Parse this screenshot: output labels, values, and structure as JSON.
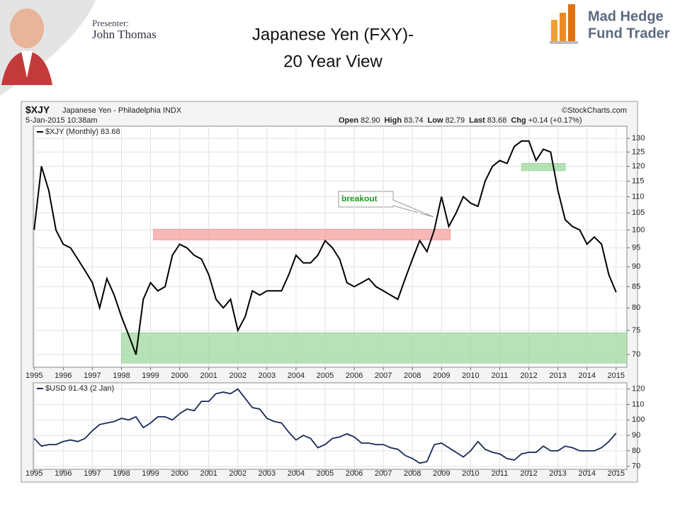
{
  "slide": {
    "presenter_label": "Presenter:",
    "presenter": "John Thomas",
    "title_lines": [
      "Japanese Yen (FXY)-",
      "20 Year View"
    ],
    "logo_lines": [
      "Mad Hedge",
      "Fund Trader"
    ]
  },
  "chart_data": [
    {
      "type": "line",
      "title": "$XJY",
      "subtitle": "Japanese Yen - Philadelphia INDX",
      "date": "5-Jan-2015 10:38am",
      "source": "©StockCharts.com",
      "quote": [
        "Open",
        "82.90",
        "High",
        "83.74",
        "Low",
        "82.79",
        "Last",
        "83.68",
        "Chg",
        "+0.14 (+0.17%)"
      ],
      "annotations": [
        "breakout"
      ],
      "log_scale": true,
      "grid": true,
      "xlim": [
        1994.97,
        2015.37
      ],
      "xticks": [
        1995,
        1996,
        1997,
        1998,
        1999,
        2000,
        2001,
        2002,
        2003,
        2004,
        2005,
        2006,
        2007,
        2008,
        2009,
        2010,
        2011,
        2012,
        2013,
        2014,
        2015
      ],
      "ylim": [
        67.5,
        134.6
      ],
      "yticks": [
        70,
        75,
        80,
        85,
        90,
        95,
        100,
        105,
        110,
        115,
        120,
        125,
        130
      ],
      "bands": [
        {
          "x": [
            1999.1,
            2009.3
          ],
          "y": [
            97.2,
            100.2
          ],
          "color": "#f4a0a0"
        },
        {
          "x": [
            2011.75,
            2013.25
          ],
          "y": [
            118.5,
            121
          ],
          "color": "#9fd89f"
        },
        {
          "x": [
            1998.0,
            2015.4
          ],
          "y": [
            68.3,
            74.5
          ],
          "color": "#9fd89f"
        }
      ],
      "x": [
        1995,
        1995.25,
        1995.5,
        1995.75,
        1996,
        1996.25,
        1996.5,
        1996.75,
        1997,
        1997.25,
        1997.5,
        1997.75,
        1998,
        1998.25,
        1998.5,
        1998.75,
        1999,
        1999.25,
        1999.5,
        1999.75,
        2000,
        2000.25,
        2000.5,
        2000.75,
        2001,
        2001.25,
        2001.5,
        2001.75,
        2002,
        2002.25,
        2002.5,
        2002.75,
        2003,
        2003.25,
        2003.5,
        2003.75,
        2004,
        2004.25,
        2004.5,
        2004.75,
        2005,
        2005.25,
        2005.5,
        2005.75,
        2006,
        2006.25,
        2006.5,
        2006.75,
        2007,
        2007.25,
        2007.5,
        2007.75,
        2008,
        2008.25,
        2008.5,
        2008.75,
        2009,
        2009.25,
        2009.5,
        2009.75,
        2010,
        2010.25,
        2010.5,
        2010.75,
        2011,
        2011.25,
        2011.5,
        2011.75,
        2012,
        2012.25,
        2012.5,
        2012.75,
        2013,
        2013.25,
        2013.5,
        2013.75,
        2014,
        2014.25,
        2014.5,
        2014.75,
        2015
      ],
      "series": [
        {
          "name": "$XJY (Monthly) 83.68",
          "color": "#000000",
          "values": [
            100,
            120,
            112,
            100,
            96,
            95,
            92,
            89,
            86,
            80,
            87,
            83,
            78,
            74,
            70,
            82,
            86,
            84,
            85,
            93,
            96,
            95,
            93,
            92,
            88,
            82,
            80,
            82,
            75,
            78,
            84,
            83,
            84,
            84,
            84,
            88,
            93,
            91,
            91,
            93,
            97,
            95,
            92,
            86,
            85,
            86,
            87,
            85,
            84,
            83,
            82,
            87,
            92,
            97,
            94,
            100,
            110,
            101,
            105,
            110,
            108,
            107,
            115,
            120,
            122,
            121,
            127,
            129,
            129,
            122,
            126,
            125,
            112,
            103,
            101,
            100,
            96,
            98,
            96,
            88,
            83.68
          ]
        }
      ]
    },
    {
      "type": "line",
      "grid": true,
      "xlim": [
        1994.97,
        2015.37
      ],
      "xticks": [
        1995,
        1996,
        1997,
        1998,
        1999,
        2000,
        2001,
        2002,
        2003,
        2004,
        2005,
        2006,
        2007,
        2008,
        2009,
        2010,
        2011,
        2012,
        2013,
        2014,
        2015
      ],
      "ylim": [
        68,
        124
      ],
      "yticks": [
        70,
        80,
        90,
        100,
        110,
        120
      ],
      "x": [
        1995,
        1995.25,
        1995.5,
        1995.75,
        1996,
        1996.25,
        1996.5,
        1996.75,
        1997,
        1997.25,
        1997.5,
        1997.75,
        1998,
        1998.25,
        1998.5,
        1998.75,
        1999,
        1999.25,
        1999.5,
        1999.75,
        2000,
        2000.25,
        2000.5,
        2000.75,
        2001,
        2001.25,
        2001.5,
        2001.75,
        2002,
        2002.25,
        2002.5,
        2002.75,
        2003,
        2003.25,
        2003.5,
        2003.75,
        2004,
        2004.25,
        2004.5,
        2004.75,
        2005,
        2005.25,
        2005.5,
        2005.75,
        2006,
        2006.25,
        2006.5,
        2006.75,
        2007,
        2007.25,
        2007.5,
        2007.75,
        2008,
        2008.25,
        2008.5,
        2008.75,
        2009,
        2009.25,
        2009.5,
        2009.75,
        2010,
        2010.25,
        2010.5,
        2010.75,
        2011,
        2011.25,
        2011.5,
        2011.75,
        2012,
        2012.25,
        2012.5,
        2012.75,
        2013,
        2013.25,
        2013.5,
        2013.75,
        2014,
        2014.25,
        2014.5,
        2014.75,
        2015
      ],
      "series": [
        {
          "name": "$USD 91.43 (2 Jan)",
          "color": "#1a2a5a",
          "values": [
            88,
            83,
            84,
            84,
            86,
            87,
            86,
            88,
            93,
            97,
            98,
            99,
            101,
            100,
            102,
            95,
            98,
            102,
            102,
            100,
            104,
            107,
            106,
            112,
            112,
            117,
            118,
            117,
            120,
            114,
            108,
            107,
            101,
            99,
            98,
            92,
            87,
            90,
            88,
            82,
            84,
            88,
            89,
            91,
            89,
            85,
            85,
            84,
            84,
            82,
            81,
            77,
            75,
            72,
            73,
            84,
            85,
            82,
            79,
            76,
            80,
            86,
            81,
            79,
            78,
            75,
            74,
            78,
            79,
            79,
            83,
            80,
            80,
            83,
            82,
            80,
            80,
            80,
            82,
            86,
            91.43
          ]
        }
      ]
    }
  ]
}
